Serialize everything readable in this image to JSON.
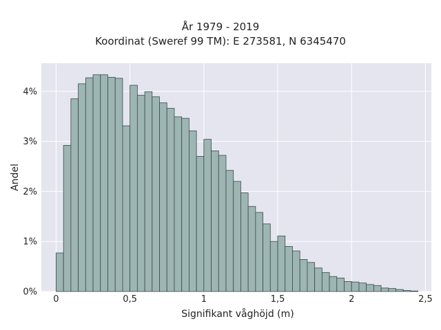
{
  "chart_data": {
    "type": "bar",
    "title_lines": [
      "År 1979 - 2019",
      "Koordinat (Sweref 99 TM): E 273581, N 6345470"
    ],
    "xlabel": "Signifikant våghöjd (m)",
    "ylabel": "Andel",
    "bin_width": 0.05,
    "x": [
      0.0,
      0.05,
      0.1,
      0.15,
      0.2,
      0.25,
      0.3,
      0.35,
      0.4,
      0.45,
      0.5,
      0.55,
      0.6,
      0.65,
      0.7,
      0.75,
      0.8,
      0.85,
      0.9,
      0.95,
      1.0,
      1.05,
      1.1,
      1.15,
      1.2,
      1.25,
      1.3,
      1.35,
      1.4,
      1.45,
      1.5,
      1.55,
      1.6,
      1.65,
      1.7,
      1.75,
      1.8,
      1.85,
      1.9,
      1.95,
      2.0,
      2.05,
      2.1,
      2.15,
      2.2,
      2.25,
      2.3,
      2.35,
      2.4,
      2.45
    ],
    "values": [
      0.77,
      2.92,
      3.85,
      4.15,
      4.27,
      4.33,
      4.33,
      4.28,
      4.26,
      3.31,
      4.12,
      3.92,
      3.99,
      3.89,
      3.77,
      3.66,
      3.49,
      3.46,
      3.21,
      2.7,
      3.04,
      2.81,
      2.72,
      2.42,
      2.2,
      1.97,
      1.7,
      1.58,
      1.35,
      1.0,
      1.11,
      0.9,
      0.81,
      0.64,
      0.58,
      0.47,
      0.38,
      0.3,
      0.27,
      0.2,
      0.19,
      0.17,
      0.14,
      0.12,
      0.07,
      0.06,
      0.04,
      0.02,
      0.01,
      0.0
    ],
    "xticks": [
      0,
      0.5,
      1,
      1.5,
      2,
      2.5
    ],
    "xtick_labels": [
      "0",
      "0,5",
      "1",
      "1,5",
      "2",
      "2,5"
    ],
    "yticks": [
      0,
      1,
      2,
      3,
      4
    ],
    "ytick_labels": [
      "0%",
      "1%",
      "2%",
      "3%",
      "4%"
    ],
    "xlim": [
      -0.1,
      2.54
    ],
    "ylim": [
      0,
      4.56
    ],
    "grid": true,
    "colors": {
      "bar_fill": "#9db5b3",
      "bar_edge": "#3a4a48",
      "plot_bg": "#e5e5f0",
      "grid": "#ffffff"
    }
  }
}
